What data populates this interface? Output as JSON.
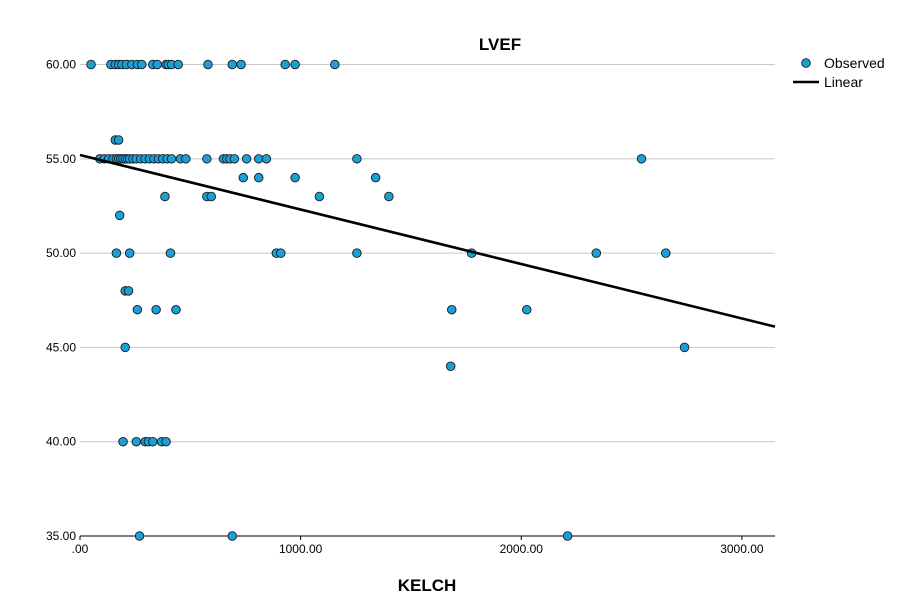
{
  "chart_data": {
    "type": "scatter",
    "title": "LVEF",
    "xlabel": "KELCH",
    "ylabel": "",
    "xlim": [
      0,
      3150
    ],
    "ylim": [
      35,
      61.3
    ],
    "x_ticks": [
      ".00",
      "1000.00",
      "2000.00",
      "3000.00"
    ],
    "y_ticks": [
      "35.00",
      "40.00",
      "45.00",
      "50.00",
      "55.00",
      "60.00"
    ],
    "legend": {
      "position": "top-right",
      "entries": [
        "Observed",
        "Linear"
      ]
    },
    "grid": true,
    "colors": {
      "observed": "#1aa0d8",
      "linear": "#000000",
      "grid": "#c8c8c8"
    },
    "series": [
      {
        "name": "Observed",
        "kind": "scatter",
        "points": [
          [
            50,
            60
          ],
          [
            140,
            60
          ],
          [
            160,
            60
          ],
          [
            175,
            60
          ],
          [
            190,
            60
          ],
          [
            210,
            60
          ],
          [
            235,
            60
          ],
          [
            260,
            60
          ],
          [
            280,
            60
          ],
          [
            330,
            60
          ],
          [
            350,
            60
          ],
          [
            390,
            60
          ],
          [
            400,
            60
          ],
          [
            415,
            60
          ],
          [
            445,
            60
          ],
          [
            580,
            60
          ],
          [
            690,
            60
          ],
          [
            730,
            60
          ],
          [
            930,
            60
          ],
          [
            975,
            60
          ],
          [
            1155,
            60
          ],
          [
            90,
            55
          ],
          [
            110,
            55
          ],
          [
            130,
            55
          ],
          [
            150,
            55
          ],
          [
            165,
            55
          ],
          [
            175,
            55
          ],
          [
            185,
            55
          ],
          [
            195,
            55
          ],
          [
            205,
            55
          ],
          [
            215,
            55
          ],
          [
            225,
            55
          ],
          [
            240,
            55
          ],
          [
            255,
            55
          ],
          [
            275,
            55
          ],
          [
            295,
            55
          ],
          [
            315,
            55
          ],
          [
            335,
            55
          ],
          [
            355,
            55
          ],
          [
            375,
            55
          ],
          [
            395,
            55
          ],
          [
            415,
            55
          ],
          [
            455,
            55
          ],
          [
            480,
            55
          ],
          [
            575,
            55
          ],
          [
            650,
            55
          ],
          [
            665,
            55
          ],
          [
            680,
            55
          ],
          [
            700,
            55
          ],
          [
            755,
            55
          ],
          [
            810,
            55
          ],
          [
            845,
            55
          ],
          [
            1255,
            55
          ],
          [
            2545,
            55
          ],
          [
            160,
            56
          ],
          [
            175,
            56
          ],
          [
            740,
            54
          ],
          [
            810,
            54
          ],
          [
            975,
            54
          ],
          [
            1340,
            54
          ],
          [
            385,
            53
          ],
          [
            575,
            53
          ],
          [
            595,
            53
          ],
          [
            1085,
            53
          ],
          [
            1400,
            53
          ],
          [
            180,
            52
          ],
          [
            165,
            50
          ],
          [
            225,
            50
          ],
          [
            410,
            50
          ],
          [
            890,
            50
          ],
          [
            910,
            50
          ],
          [
            1255,
            50
          ],
          [
            1775,
            50
          ],
          [
            2340,
            50
          ],
          [
            2655,
            50
          ],
          [
            205,
            48
          ],
          [
            220,
            48
          ],
          [
            260,
            47
          ],
          [
            345,
            47
          ],
          [
            435,
            47
          ],
          [
            1685,
            47
          ],
          [
            2025,
            47
          ],
          [
            205,
            45
          ],
          [
            2740,
            45
          ],
          [
            1680,
            44
          ],
          [
            195,
            40
          ],
          [
            255,
            40
          ],
          [
            295,
            40
          ],
          [
            310,
            40
          ],
          [
            330,
            40
          ],
          [
            370,
            40
          ],
          [
            390,
            40
          ],
          [
            270,
            35
          ],
          [
            690,
            35
          ],
          [
            2210,
            35
          ]
        ]
      },
      {
        "name": "Linear",
        "kind": "line",
        "points": [
          [
            0,
            55.2
          ],
          [
            3150,
            46.1
          ]
        ]
      }
    ]
  }
}
